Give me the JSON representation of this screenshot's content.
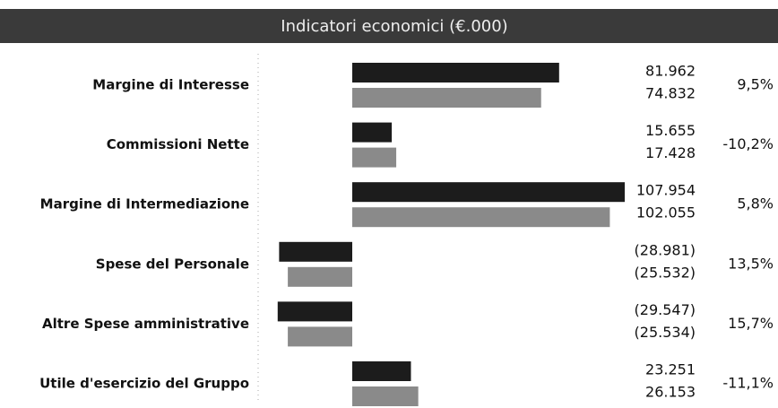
{
  "chart_data": {
    "type": "paired-hbar",
    "title": "Indicatori economici (€.000)",
    "categories": [
      "Margine di Interesse",
      "Commissioni Nette",
      "Margine di Intermediazione",
      "Spese del Personale",
      "Altre Spese amministrative",
      "Utile d'esercizio del Gruppo"
    ],
    "series": [
      {
        "color": "#1c1c1c",
        "values": [
          81962,
          15655,
          107954,
          -28981,
          -29547,
          23251
        ],
        "value_labels": [
          "81.962",
          "15.655",
          "107.954",
          "(28.981)",
          "(29.547)",
          "23.251"
        ]
      },
      {
        "color": "#8a8a8a",
        "values": [
          74832,
          17428,
          102055,
          -25532,
          -25534,
          26153
        ],
        "value_labels": [
          "74.832",
          "17.428",
          "102.055",
          "(25.532)",
          "(25.534)",
          "26.153"
        ]
      }
    ],
    "changes": [
      9.5,
      -10.2,
      5.8,
      13.5,
      15.7,
      -11.1
    ],
    "change_labels": [
      "9,5%",
      "-10,2%",
      "5,8%",
      "13,5%",
      "15,7%",
      "-11,1%"
    ]
  }
}
